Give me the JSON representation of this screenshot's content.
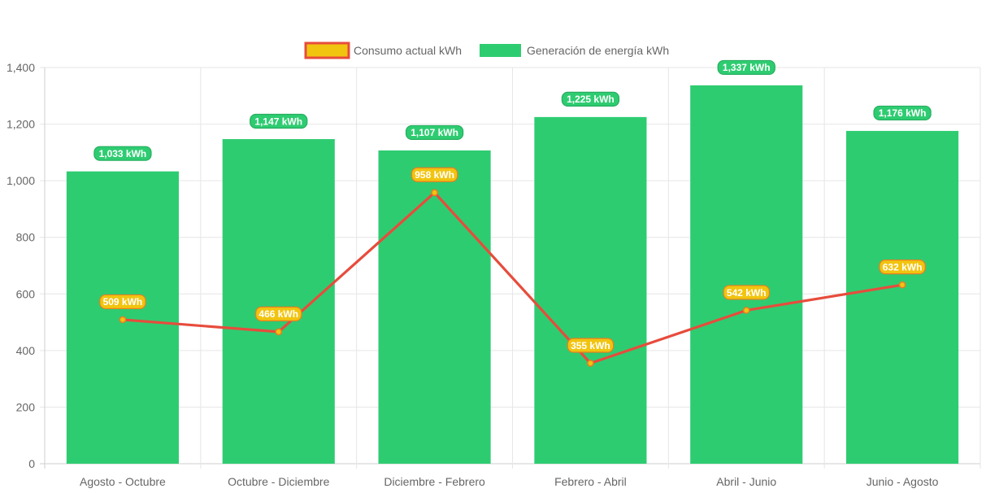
{
  "chart_data": {
    "type": "bar",
    "title": "",
    "xlabel": "",
    "ylabel": "",
    "ylim": [
      0,
      1400
    ],
    "yticks": [
      0,
      200,
      400,
      600,
      800,
      1000,
      1200,
      1400
    ],
    "ytick_labels": [
      "0",
      "200",
      "400",
      "600",
      "800",
      "1,000",
      "1,200",
      "1,400"
    ],
    "grid": true,
    "legend_position": "top-center",
    "categories": [
      "Agosto - Octubre",
      "Octubre - Diciembre",
      "Diciembre - Febrero",
      "Febrero - Abril",
      "Abril - Junio",
      "Junio - Agosto"
    ],
    "series": [
      {
        "name": "Consumo actual kWh",
        "type": "line",
        "values": [
          509,
          466,
          958,
          355,
          542,
          632
        ],
        "labels": [
          "509 kWh",
          "466 kWh",
          "958 kWh",
          "355 kWh",
          "542 kWh",
          "632 kWh"
        ],
        "line_color": "#e74c3c",
        "fill_color": "#f1c40f"
      },
      {
        "name": "Generación de energía kWh",
        "type": "bar",
        "values": [
          1033,
          1147,
          1107,
          1225,
          1337,
          1176
        ],
        "labels": [
          "1,033 kWh",
          "1,147 kWh",
          "1,107 kWh",
          "1,225 kWh",
          "1,337 kWh",
          "1,176 kWh"
        ],
        "color": "#2ecc71"
      }
    ]
  }
}
